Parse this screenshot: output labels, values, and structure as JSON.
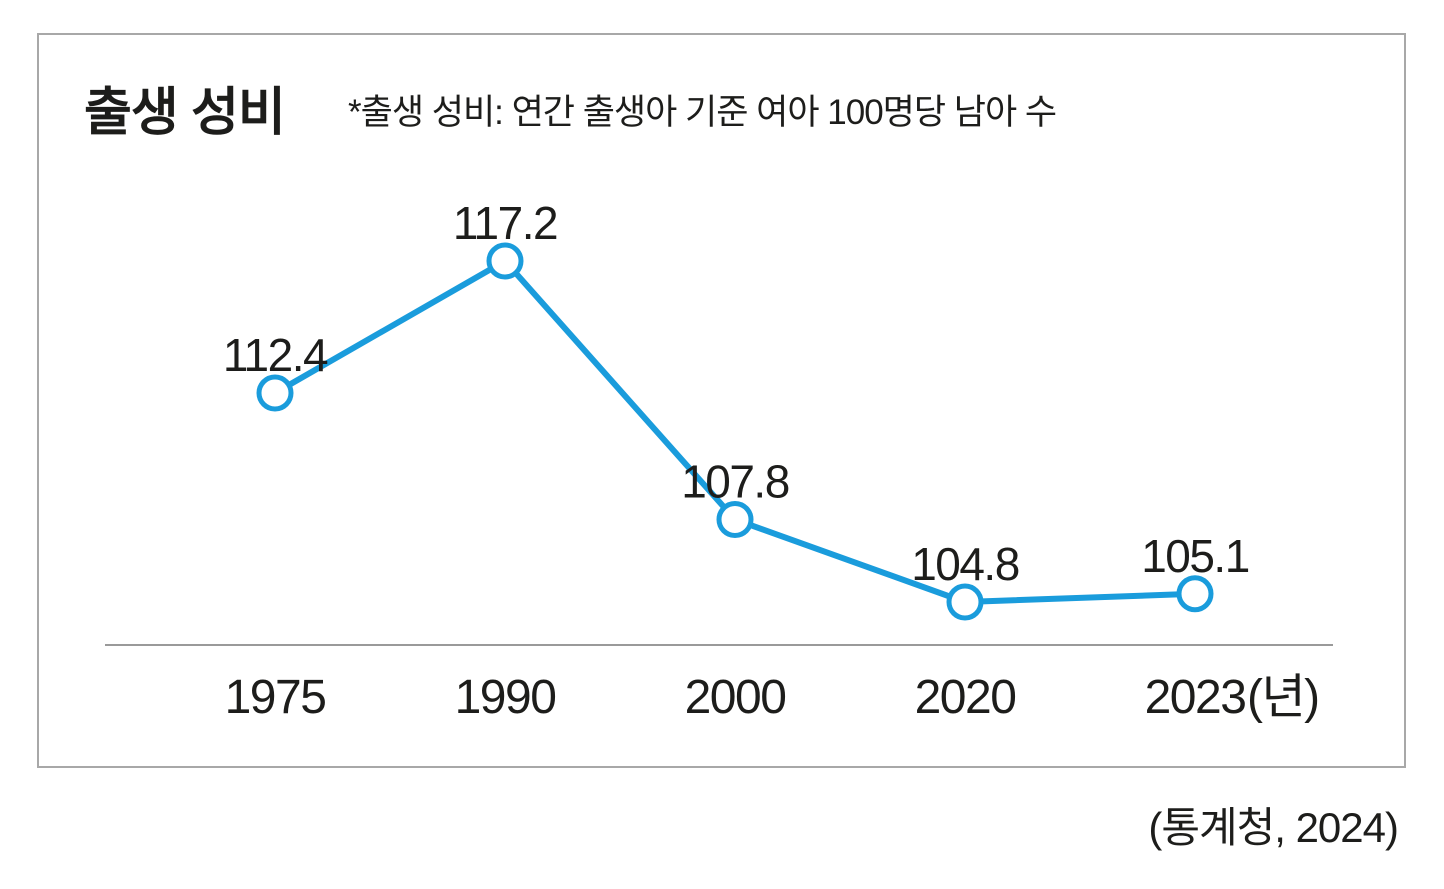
{
  "header": {
    "title": "출생 성비",
    "note": "*출생 성비: 연간 출생아 기준 여아 100명당 남아 수"
  },
  "source": "(통계청, 2024)",
  "chart_data": {
    "type": "line",
    "title": "출생 성비",
    "subtitle": "*출생 성비: 연간 출생아 기준 여아 100명당 남아 수",
    "categories": [
      "1975",
      "1990",
      "2000",
      "2020",
      "2023"
    ],
    "values": [
      112.4,
      117.2,
      107.8,
      104.8,
      105.1
    ],
    "point_labels": [
      "112.4",
      "117.2",
      "107.8",
      "104.8",
      "105.1"
    ],
    "x_unit_label": "(년)",
    "source": "(통계청, 2024)",
    "grid": false,
    "legend": "none",
    "y_axis_shown": false,
    "colors": {
      "line": "#1a9cdc",
      "marker_fill": "#ffffff",
      "marker_stroke": "#1a9cdc",
      "axis": "#9a9a9a",
      "text": "#1d1d1b"
    }
  }
}
